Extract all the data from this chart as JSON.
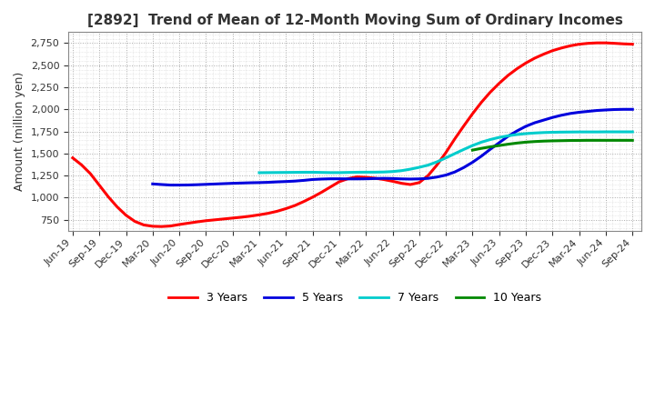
{
  "title": "[2892]  Trend of Mean of 12-Month Moving Sum of Ordinary Incomes",
  "ylabel": "Amount (million yen)",
  "ylim": [
    625,
    2875
  ],
  "yticks": [
    750,
    1000,
    1250,
    1500,
    1750,
    2000,
    2250,
    2500,
    2750
  ],
  "background_color": "#ffffff",
  "grid_color": "#aaaaaa",
  "title_color": "#333333",
  "series": {
    "3yr": {
      "color": "#ff0000",
      "label": "3 Years",
      "x": [
        0,
        1,
        2,
        3,
        4,
        5,
        6,
        7,
        8,
        9,
        10,
        11,
        12,
        13,
        14,
        15,
        16,
        17,
        18,
        19,
        20,
        21,
        22,
        23,
        24,
        25,
        26,
        27,
        28,
        29,
        30,
        31,
        32,
        33,
        34,
        35,
        36,
        37,
        38,
        39,
        40,
        41,
        42,
        43,
        44,
        45,
        46,
        47,
        48,
        49,
        50,
        51,
        52,
        53,
        54,
        55,
        56,
        57,
        58,
        59,
        60,
        61,
        62,
        63
      ],
      "y": [
        1450,
        1370,
        1270,
        1140,
        1010,
        895,
        800,
        730,
        690,
        675,
        672,
        678,
        695,
        710,
        725,
        738,
        748,
        758,
        768,
        778,
        790,
        805,
        822,
        845,
        875,
        910,
        955,
        1005,
        1060,
        1120,
        1180,
        1215,
        1235,
        1230,
        1220,
        1205,
        1185,
        1162,
        1148,
        1170,
        1250,
        1370,
        1510,
        1665,
        1810,
        1950,
        2080,
        2195,
        2295,
        2385,
        2460,
        2525,
        2580,
        2625,
        2665,
        2695,
        2720,
        2738,
        2748,
        2753,
        2753,
        2748,
        2742,
        2738
      ]
    },
    "5yr": {
      "color": "#0000dd",
      "label": "5 Years",
      "x": [
        9,
        10,
        11,
        12,
        13,
        14,
        15,
        16,
        17,
        18,
        19,
        20,
        21,
        22,
        23,
        24,
        25,
        26,
        27,
        28,
        29,
        30,
        31,
        32,
        33,
        34,
        35,
        36,
        37,
        38,
        39,
        40,
        41,
        42,
        43,
        44,
        45,
        46,
        47,
        48,
        49,
        50,
        51,
        52,
        53,
        54,
        55,
        56,
        57,
        58,
        59,
        60,
        61,
        62,
        63
      ],
      "y": [
        1155,
        1148,
        1142,
        1142,
        1143,
        1146,
        1150,
        1154,
        1158,
        1162,
        1165,
        1168,
        1170,
        1173,
        1178,
        1182,
        1187,
        1195,
        1205,
        1210,
        1213,
        1213,
        1212,
        1212,
        1213,
        1216,
        1218,
        1216,
        1212,
        1210,
        1212,
        1218,
        1233,
        1255,
        1290,
        1340,
        1400,
        1470,
        1548,
        1622,
        1695,
        1755,
        1808,
        1848,
        1878,
        1908,
        1933,
        1953,
        1967,
        1977,
        1987,
        1993,
        1998,
        2000,
        2000
      ]
    },
    "7yr": {
      "color": "#00cccc",
      "label": "7 Years",
      "x": [
        21,
        22,
        23,
        24,
        25,
        26,
        27,
        28,
        29,
        30,
        31,
        32,
        33,
        34,
        35,
        36,
        37,
        38,
        39,
        40,
        41,
        42,
        43,
        44,
        45,
        46,
        47,
        48,
        49,
        50,
        51,
        52,
        53,
        54,
        55,
        56,
        57,
        58,
        59,
        60,
        61,
        62,
        63
      ],
      "y": [
        1282,
        1283,
        1284,
        1285,
        1286,
        1287,
        1287,
        1285,
        1283,
        1283,
        1285,
        1287,
        1288,
        1288,
        1290,
        1295,
        1305,
        1322,
        1343,
        1368,
        1405,
        1450,
        1498,
        1545,
        1590,
        1628,
        1658,
        1682,
        1700,
        1715,
        1725,
        1732,
        1737,
        1740,
        1742,
        1743,
        1744,
        1744,
        1744,
        1745,
        1745,
        1745,
        1745
      ]
    },
    "10yr": {
      "color": "#008800",
      "label": "10 Years",
      "x": [
        45,
        46,
        47,
        48,
        49,
        50,
        51,
        52,
        53,
        54,
        55,
        56,
        57,
        58,
        59,
        60,
        61,
        62,
        63
      ],
      "y": [
        1538,
        1558,
        1575,
        1590,
        1605,
        1618,
        1628,
        1635,
        1640,
        1643,
        1645,
        1647,
        1648,
        1649,
        1649,
        1649,
        1649,
        1649,
        1649
      ]
    }
  },
  "xtick_positions": [
    0,
    3,
    6,
    9,
    12,
    15,
    18,
    21,
    24,
    27,
    30,
    33,
    36,
    39,
    42,
    45,
    48,
    51,
    54,
    57,
    60,
    63
  ],
  "xtick_labels": [
    "Jun-19",
    "Sep-19",
    "Dec-19",
    "Mar-20",
    "Jun-20",
    "Sep-20",
    "Dec-20",
    "Mar-21",
    "Jun-21",
    "Sep-21",
    "Dec-21",
    "Mar-22",
    "Jun-22",
    "Sep-22",
    "Dec-22",
    "Mar-23",
    "Jun-23",
    "Sep-23",
    "Dec-23",
    "Mar-24",
    "Jun-24",
    "Sep-24"
  ],
  "legend_entries": [
    "3 Years",
    "5 Years",
    "7 Years",
    "10 Years"
  ],
  "legend_colors": [
    "#ff0000",
    "#0000dd",
    "#00cccc",
    "#008800"
  ]
}
